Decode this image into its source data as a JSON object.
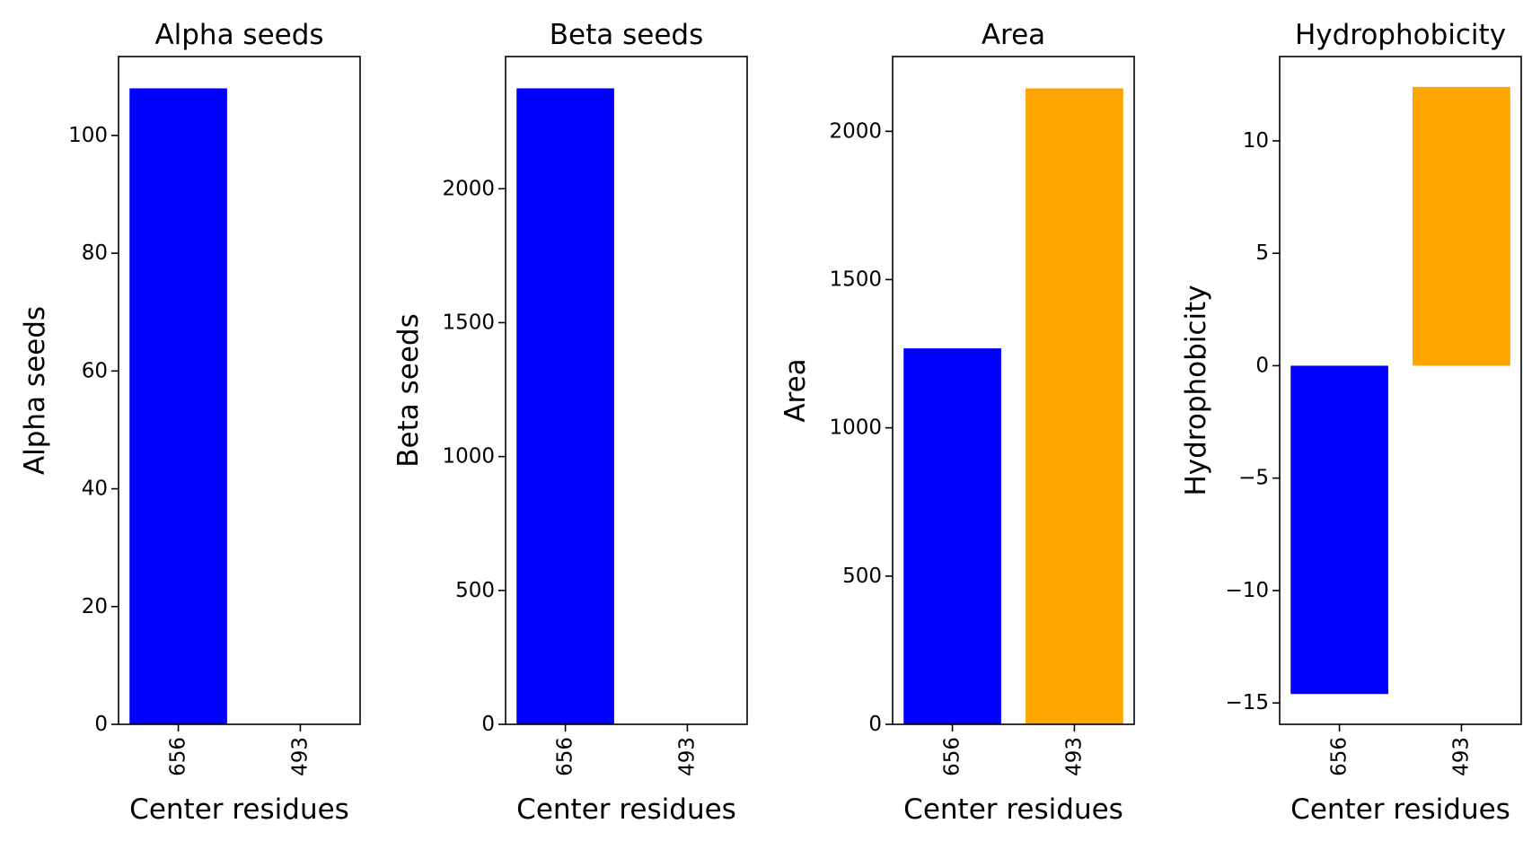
{
  "chart_data": [
    {
      "type": "bar",
      "title": "Alpha seeds",
      "xlabel": "Center residues",
      "ylabel": "Alpha seeds",
      "categories": [
        "656",
        "493"
      ],
      "values": [
        108,
        0
      ],
      "colors": [
        "#0000ff",
        "#ffa500"
      ],
      "ylim": [
        0,
        113.4
      ],
      "yticks": [
        0,
        20,
        40,
        60,
        80,
        100
      ],
      "grid": false
    },
    {
      "type": "bar",
      "title": "Beta seeds",
      "xlabel": "Center residues",
      "ylabel": "Beta seeds",
      "categories": [
        "656",
        "493"
      ],
      "values": [
        2375,
        0
      ],
      "colors": [
        "#0000ff",
        "#ffa500"
      ],
      "ylim": [
        0,
        2493.75
      ],
      "yticks": [
        0,
        500,
        1000,
        1500,
        2000
      ],
      "grid": false
    },
    {
      "type": "bar",
      "title": "Area",
      "xlabel": "Center residues",
      "ylabel": "Area",
      "categories": [
        "656",
        "493"
      ],
      "values": [
        1268,
        2145
      ],
      "colors": [
        "#0000ff",
        "#ffa500"
      ],
      "ylim": [
        0,
        2252.25
      ],
      "yticks": [
        0,
        500,
        1000,
        1500,
        2000
      ],
      "grid": false
    },
    {
      "type": "bar",
      "title": "Hydrophobicity",
      "xlabel": "Center residues",
      "ylabel": "Hydrophobicity",
      "categories": [
        "656",
        "493"
      ],
      "values": [
        -14.6,
        12.4
      ],
      "colors": [
        "#0000ff",
        "#ffa500"
      ],
      "ylim": [
        -15.95,
        13.75
      ],
      "yticks": [
        -15,
        -10,
        -5,
        0,
        5,
        10
      ],
      "tick_labels": [
        "−15",
        "−10",
        "−5",
        "0",
        "5",
        "10"
      ],
      "grid": false
    }
  ]
}
